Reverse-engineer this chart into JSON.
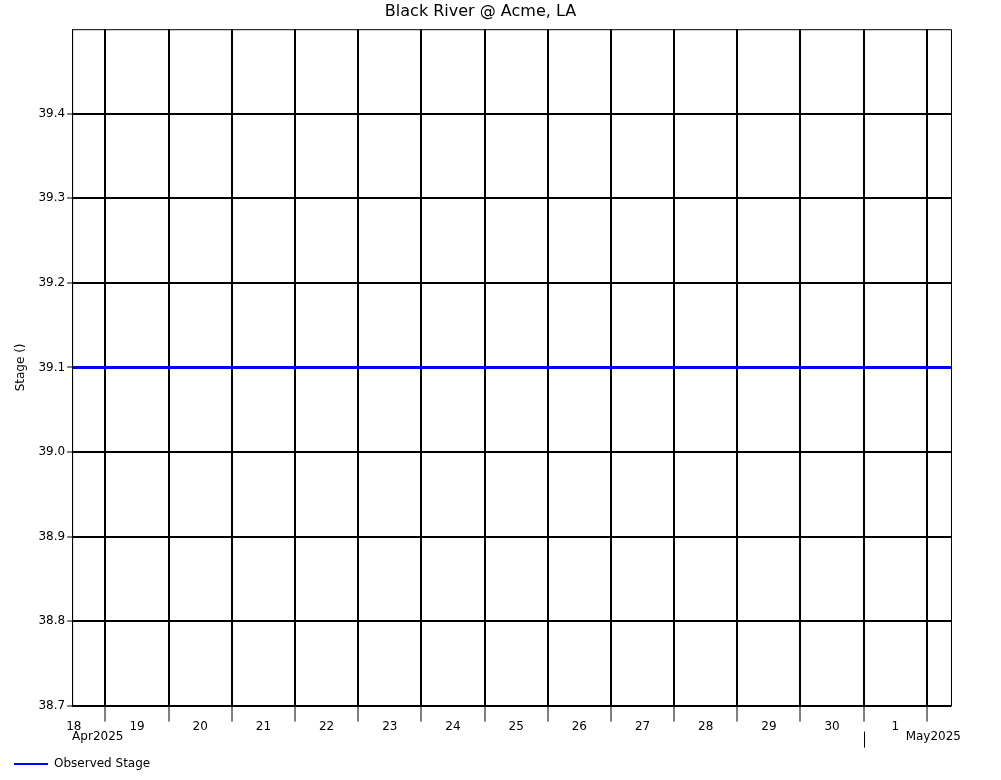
{
  "chart_data": {
    "type": "line",
    "title": "Black River @ Acme, LA",
    "ylabel": "Stage ()",
    "x": [
      "2025-04-18T11:20",
      "2025-05-02T09:10"
    ],
    "series": [
      {
        "name": "Observed Stage",
        "color": "#0000ff",
        "values": [
          39.1,
          39.1
        ]
      }
    ],
    "xlim": [
      "2025-04-18T11:20",
      "2025-05-02T09:10"
    ],
    "xticks": [
      {
        "value": "2025-04-18T12:00",
        "label": "18"
      },
      {
        "value": "2025-04-19",
        "label": null
      },
      {
        "value": "2025-04-19T12:00",
        "label": "19"
      },
      {
        "value": "2025-04-20",
        "label": null
      },
      {
        "value": "2025-04-20T12:00",
        "label": "20"
      },
      {
        "value": "2025-04-21",
        "label": null
      },
      {
        "value": "2025-04-21T12:00",
        "label": "21"
      },
      {
        "value": "2025-04-22",
        "label": null
      },
      {
        "value": "2025-04-22T12:00",
        "label": "22"
      },
      {
        "value": "2025-04-23",
        "label": null
      },
      {
        "value": "2025-04-23T12:00",
        "label": "23"
      },
      {
        "value": "2025-04-24",
        "label": null
      },
      {
        "value": "2025-04-24T12:00",
        "label": "24"
      },
      {
        "value": "2025-04-25",
        "label": null
      },
      {
        "value": "2025-04-25T12:00",
        "label": "25"
      },
      {
        "value": "2025-04-26",
        "label": null
      },
      {
        "value": "2025-04-26T12:00",
        "label": "26"
      },
      {
        "value": "2025-04-27",
        "label": null
      },
      {
        "value": "2025-04-27T12:00",
        "label": "27"
      },
      {
        "value": "2025-04-28",
        "label": null
      },
      {
        "value": "2025-04-28T12:00",
        "label": "28"
      },
      {
        "value": "2025-04-29",
        "label": null
      },
      {
        "value": "2025-04-29T12:00",
        "label": "29"
      },
      {
        "value": "2025-04-30",
        "label": null
      },
      {
        "value": "2025-04-30T12:00",
        "label": "30"
      },
      {
        "value": "2025-05-01",
        "label": null
      },
      {
        "value": "2025-05-01T12:00",
        "label": "1"
      },
      {
        "value": "2025-05-02",
        "label": null
      }
    ],
    "ylim": [
      38.7,
      39.5
    ],
    "yticks": [
      38.7,
      38.8,
      38.9,
      {
        "value": 39,
        "label": "39.0"
      },
      39.1,
      39.2,
      39.3,
      39.4
    ],
    "grid": true,
    "legend": "bottom left",
    "marker": "none",
    "line_style": "solid",
    "annotations": [
      "Apr2025",
      "May2025"
    ]
  }
}
